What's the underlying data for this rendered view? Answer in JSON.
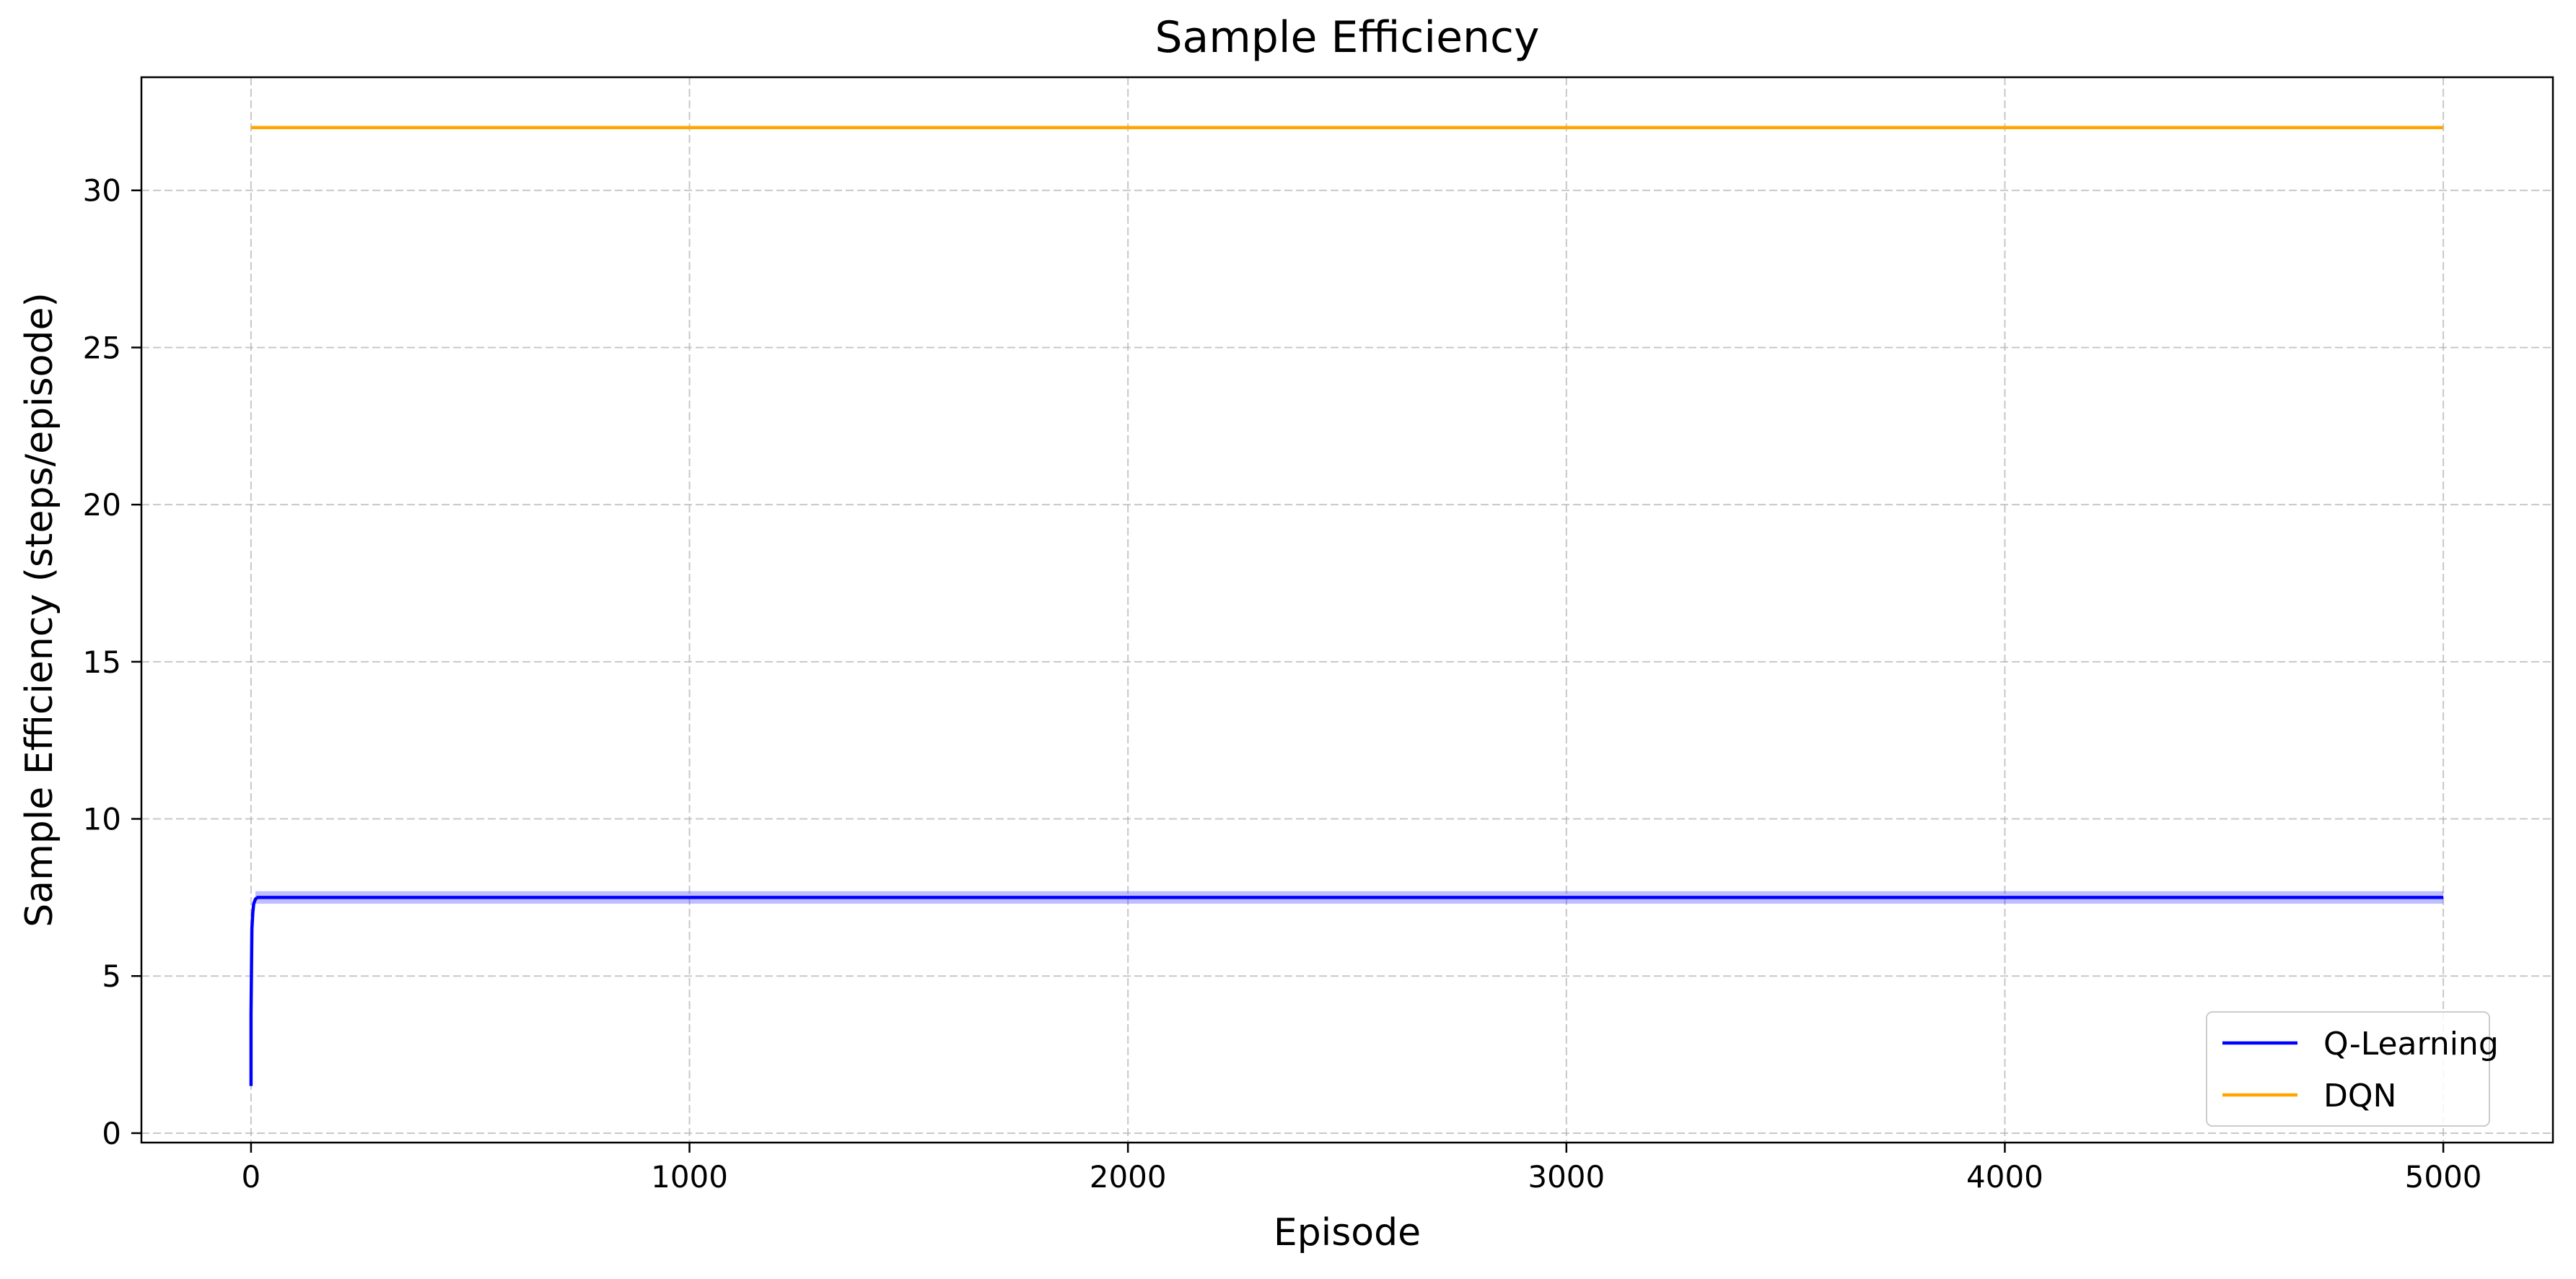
{
  "chart_data": {
    "type": "line",
    "title": "Sample Efficiency",
    "xlabel": "Episode",
    "ylabel": "Sample Efficiency (steps/episode)",
    "xlim": [
      -250,
      5250
    ],
    "ylim": [
      -0.3,
      33.6
    ],
    "xticks": [
      0,
      1000,
      2000,
      3000,
      4000,
      5000
    ],
    "xtick_labels": [
      "0",
      "1000",
      "2000",
      "3000",
      "4000",
      "5000"
    ],
    "yticks": [
      0,
      5,
      10,
      15,
      20,
      25,
      30
    ],
    "ytick_labels": [
      "0",
      "5",
      "10",
      "15",
      "20",
      "25",
      "30"
    ],
    "grid": true,
    "legend_position": "lower-right",
    "series": [
      {
        "name": "Q-Learning",
        "color": "#0000ff",
        "band": {
          "lower": 7.3,
          "upper": 7.7,
          "color": "#0000ff",
          "opacity": 0.25
        },
        "x": [
          0,
          0,
          2,
          4,
          6,
          10,
          15,
          20,
          30,
          50,
          100,
          500,
          1000,
          2000,
          3000,
          4000,
          5000
        ],
        "y": [
          1.5,
          3.8,
          6.5,
          7.0,
          7.3,
          7.45,
          7.5,
          7.5,
          7.5,
          7.5,
          7.5,
          7.5,
          7.5,
          7.5,
          7.5,
          7.5,
          7.5
        ]
      },
      {
        "name": "DQN",
        "color": "#ffa500",
        "x": [
          0,
          5000
        ],
        "y": [
          32.0,
          32.0
        ]
      }
    ]
  }
}
